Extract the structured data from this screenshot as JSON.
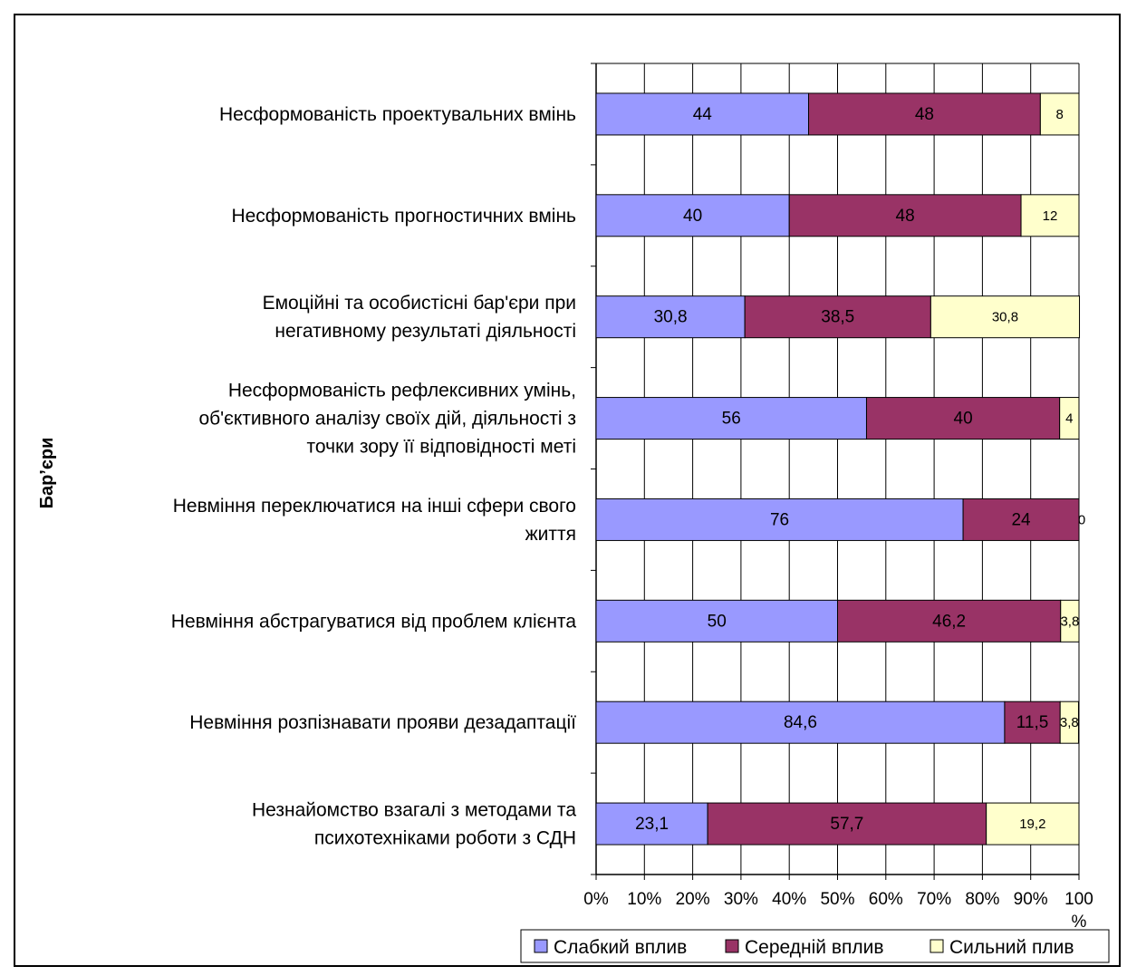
{
  "chart_data": {
    "type": "bar",
    "orientation": "horizontal",
    "stacked": "percent",
    "ylabel": "Бар’єри",
    "xlim": [
      0,
      100
    ],
    "x_ticks": [
      "0%",
      "10%",
      "20%",
      "30%",
      "40%",
      "50%",
      "60%",
      "70%",
      "80%",
      "90%",
      "100 %"
    ],
    "grid": true,
    "legend_position": "bottom-right",
    "categories": [
      [
        "Несформованість проектувальних вмінь"
      ],
      [
        "Несформованість прогностичних вмінь"
      ],
      [
        "Емоційні та особистісні бар'єри при",
        "негативному результаті діяльності"
      ],
      [
        "Несформованість рефлексивних умінь,",
        "об'єктивного аналізу своїх дій, діяльності з",
        "точки зору її відповідності меті"
      ],
      [
        "Невміння переключатися на інші сфери свого",
        "життя"
      ],
      [
        "Невміння абстрагуватися від проблем клієнта"
      ],
      [
        "Невміння  розпізнавати прояви дезадаптації"
      ],
      [
        "Незнайомство взагалі з методами та",
        "психотехніками роботи з СДН"
      ]
    ],
    "series": [
      {
        "name": "Слабкий вплив",
        "color": "#9999ff",
        "values": [
          44,
          40,
          30.8,
          56,
          76,
          50,
          84.6,
          23.1
        ],
        "labels": [
          "44",
          "40",
          "30,8",
          "56",
          "76",
          "50",
          "84,6",
          "23,1"
        ]
      },
      {
        "name": "Середній вплив",
        "color": "#993366",
        "values": [
          48,
          48,
          38.5,
          40,
          24,
          46.2,
          11.5,
          57.7
        ],
        "labels": [
          "48",
          "48",
          "38,5",
          "40",
          "24",
          "46,2",
          "11,5",
          "57,7"
        ]
      },
      {
        "name": "Сильний плив",
        "color": "#ffffcc",
        "values": [
          8,
          12,
          30.8,
          4,
          0,
          3.8,
          3.8,
          19.2
        ],
        "labels": [
          "8",
          "12",
          "30,8",
          "4",
          "0",
          "3,8",
          "3,8",
          "19,2"
        ]
      }
    ]
  }
}
